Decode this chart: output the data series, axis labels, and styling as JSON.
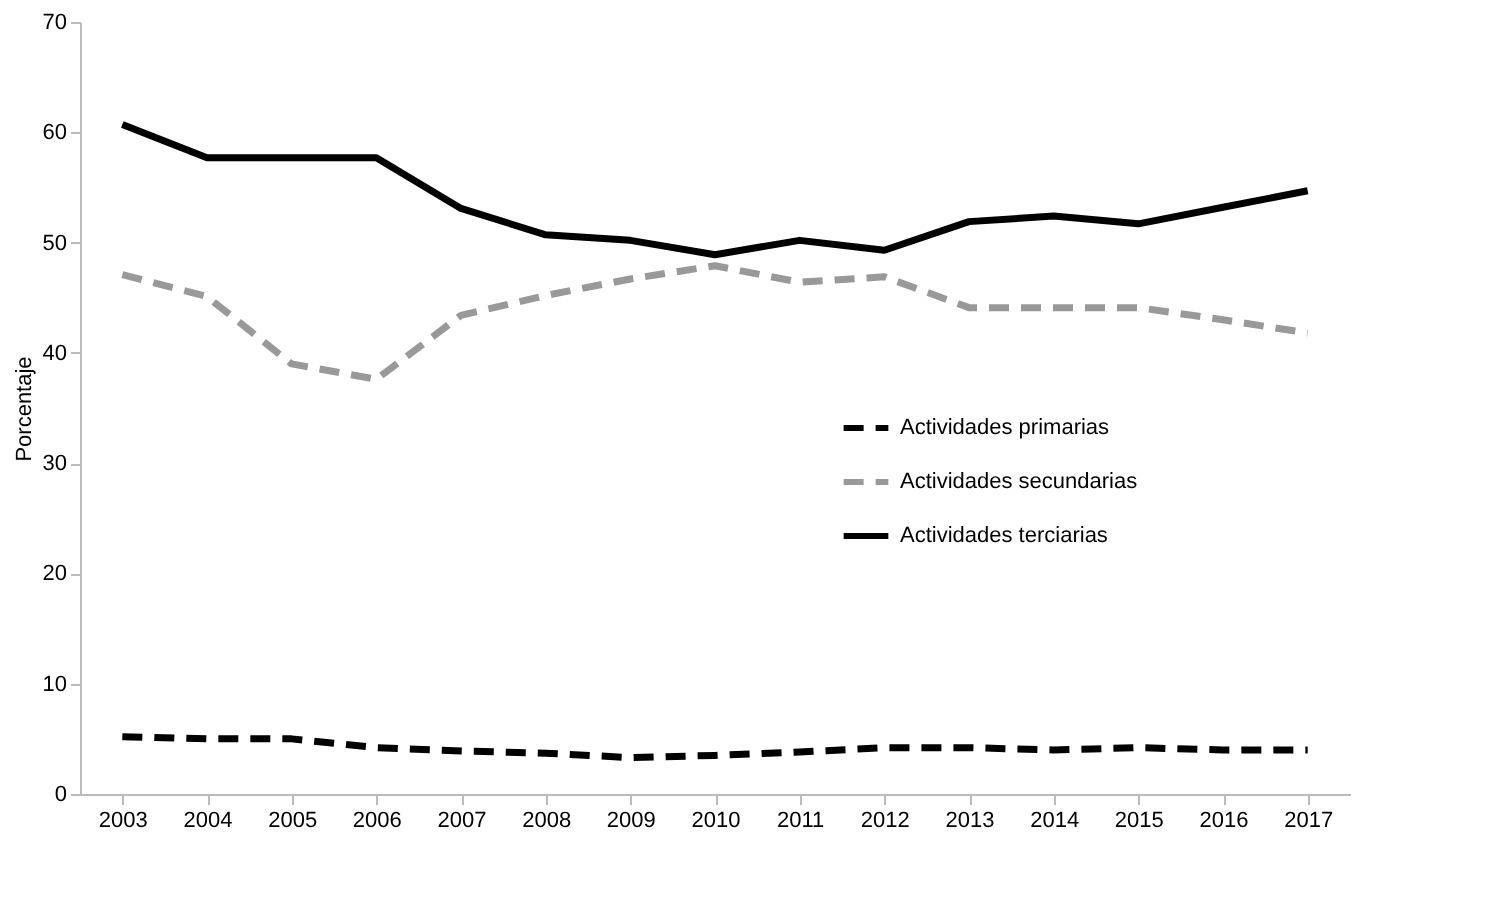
{
  "chart_data": {
    "type": "line",
    "ylabel": "Porcentaje",
    "categories": [
      "2003",
      "2004",
      "2005",
      "2006",
      "2007",
      "2008",
      "2009",
      "2010",
      "2011",
      "2012",
      "2013",
      "2014",
      "2015",
      "2016",
      "2017"
    ],
    "series": [
      {
        "name": "Actividades primarias",
        "color": "#000000",
        "line_style": "dashed",
        "values": [
          5.2,
          5.0,
          5.0,
          4.2,
          3.9,
          3.7,
          3.3,
          3.5,
          3.8,
          4.2,
          4.2,
          4.0,
          4.2,
          4.0,
          4.0
        ]
      },
      {
        "name": "Actividades secundarias",
        "color": "#999999",
        "line_style": "dashed",
        "values": [
          47.1,
          45.1,
          39.0,
          37.6,
          43.4,
          45.2,
          46.7,
          47.9,
          46.4,
          46.9,
          44.1,
          44.1,
          44.1,
          43.0,
          41.8
        ]
      },
      {
        "name": "Actividades terciarias",
        "color": "#000000",
        "line_style": "solid",
        "values": [
          60.7,
          57.7,
          57.7,
          57.7,
          53.1,
          50.7,
          50.2,
          48.9,
          50.2,
          49.3,
          51.9,
          52.4,
          51.7,
          53.2,
          54.7
        ]
      }
    ],
    "ylim": [
      0,
      70
    ],
    "yticks": [
      0,
      10,
      20,
      30,
      40,
      50,
      60,
      70
    ],
    "grid": false,
    "legend": "right",
    "marker": "none"
  }
}
